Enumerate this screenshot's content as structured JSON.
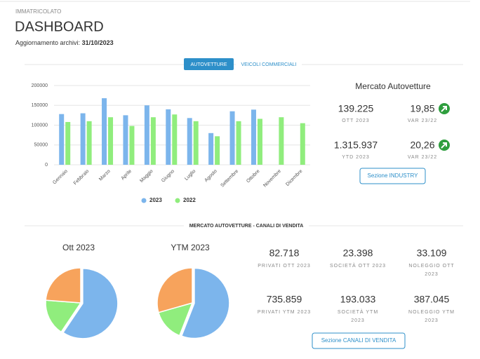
{
  "header": {
    "section": "IMMATRICOLATO",
    "title": "DASHBOARD",
    "update_label": "Aggiornamento archivi:",
    "update_date": "31/10/2023"
  },
  "tabs": [
    "AUTOVETTURE",
    "VEICOLI COMMERCIALI"
  ],
  "chart_data": [
    {
      "type": "bar",
      "categories": [
        "Gennaio",
        "Febbraio",
        "Marzo",
        "Aprile",
        "Maggio",
        "Giugno",
        "Luglio",
        "Agosto",
        "Settembre",
        "Ottobre",
        "Novembre",
        "Dicembre"
      ],
      "series": [
        {
          "name": "2023",
          "color": "#7cb5ec",
          "values": [
            128000,
            130000,
            168000,
            125000,
            150000,
            140000,
            118000,
            80000,
            135000,
            139225,
            null,
            null
          ]
        },
        {
          "name": "2022",
          "color": "#90ed7d",
          "values": [
            108000,
            110000,
            120000,
            98000,
            120000,
            127000,
            110000,
            72000,
            110000,
            116000,
            120000,
            105000
          ]
        }
      ],
      "ylim": [
        0,
        200000
      ],
      "yticks": [
        0,
        50000,
        100000,
        150000,
        200000
      ],
      "grid": true
    },
    {
      "type": "pie",
      "title": "Ott 2023",
      "values": [
        82718,
        23398,
        33109
      ],
      "colors": [
        "#7cb5ec",
        "#90ed7d",
        "#f7a35c"
      ]
    },
    {
      "type": "pie",
      "title": "YTM 2023",
      "values": [
        735859,
        193033,
        387045
      ],
      "colors": [
        "#7cb5ec",
        "#90ed7d",
        "#f7a35c"
      ]
    }
  ],
  "market": {
    "title": "Mercato Autovetture",
    "kpis": [
      {
        "value": "139.225",
        "label": "OTT 2023"
      },
      {
        "value": "19,85",
        "label": "VAR 23/22"
      },
      {
        "value": "1.315.937",
        "label": "YTD 2023"
      },
      {
        "value": "20,26",
        "label": "VAR 23/22"
      }
    ],
    "button": "Sezione INDUSTRY"
  },
  "channels": {
    "title": "MERCATO AUTOVETTURE - CANALI DI VENDITA",
    "kpis": [
      {
        "value": "82.718",
        "label": [
          "PRIVATI OTT 2023"
        ]
      },
      {
        "value": "23.398",
        "label": [
          "SOCIETÀ OTT 2023"
        ]
      },
      {
        "value": "33.109",
        "label": [
          "NOLEGGIO OTT",
          "2023"
        ]
      },
      {
        "value": "735.859",
        "label": [
          "PRIVATI YTM 2023"
        ]
      },
      {
        "value": "193.033",
        "label": [
          "SOCIETÀ YTM",
          "2023"
        ]
      },
      {
        "value": "387.045",
        "label": [
          "NOLEGGIO YTM",
          "2023"
        ]
      }
    ],
    "button": "Sezione CANALI DI VENDITA"
  }
}
